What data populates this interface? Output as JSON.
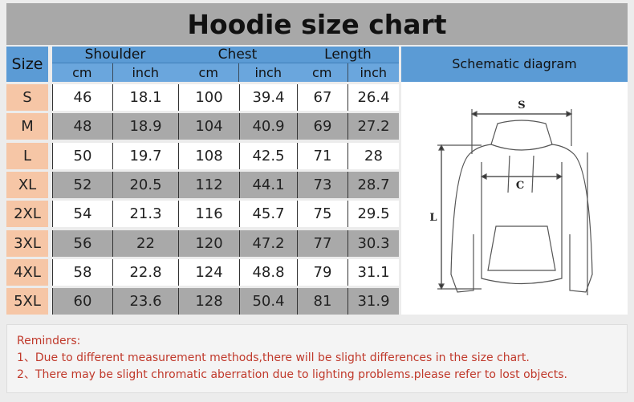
{
  "title": "Hoodie size chart",
  "headers": {
    "size": "Size",
    "groups": [
      "Shoulder",
      "Chest",
      "Length"
    ],
    "units": [
      "cm",
      "inch"
    ]
  },
  "rows": [
    {
      "size": "S",
      "values": [
        "46",
        "18.1",
        "100",
        "39.4",
        "67",
        "26.4"
      ]
    },
    {
      "size": "M",
      "values": [
        "48",
        "18.9",
        "104",
        "40.9",
        "69",
        "27.2"
      ]
    },
    {
      "size": "L",
      "values": [
        "50",
        "19.7",
        "108",
        "42.5",
        "71",
        "28"
      ]
    },
    {
      "size": "XL",
      "values": [
        "52",
        "20.5",
        "112",
        "44.1",
        "73",
        "28.7"
      ]
    },
    {
      "size": "2XL",
      "values": [
        "54",
        "21.3",
        "116",
        "45.7",
        "75",
        "29.5"
      ]
    },
    {
      "size": "3XL",
      "values": [
        "56",
        "22",
        "120",
        "47.2",
        "77",
        "30.3"
      ]
    },
    {
      "size": "4XL",
      "values": [
        "58",
        "22.8",
        "124",
        "48.8",
        "79",
        "31.1"
      ]
    },
    {
      "size": "5XL",
      "values": [
        "60",
        "23.6",
        "128",
        "50.4",
        "81",
        "31.9"
      ]
    }
  ],
  "diagram": {
    "title": "Schematic diagram",
    "labels": {
      "shoulder": "S",
      "chest": "C",
      "length": "L"
    }
  },
  "reminders": {
    "heading": "Reminders:",
    "items": [
      "1、Due to different measurement methods,there will be slight differences in the size chart.",
      "2、There may be slight chromatic aberration due to lighting problems.please refer to lost objects."
    ]
  },
  "colors": {
    "header": "#5b9bd5",
    "size_cell": "#f6c6a6",
    "row_alt": "#a9a9a9",
    "reminder_text": "#c0392b"
  }
}
